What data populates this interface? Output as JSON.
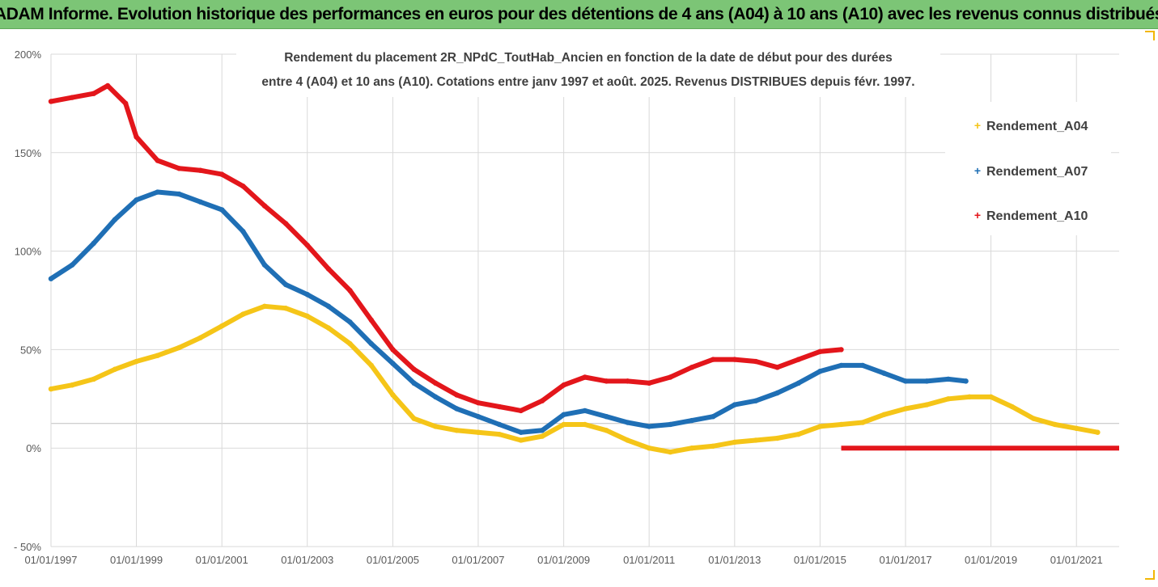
{
  "banner": {
    "title": "ADAM Informe. Evolution historique des performances en euros pour des détentions de 4 ans (A04) à 10 ans (A10) avec les revenus connus distribués"
  },
  "chart_data": {
    "type": "scatter",
    "title_line1": "Rendement du placement 2R_NPdC_ToutHab_Ancien en fonction de la date de début pour des durées",
    "title_line2": "entre 4 (A04) et 10 ans (A10). Cotations entre janv 1997 et août. 2025. Revenus DISTRIBUES depuis févr. 1997.",
    "xlabel": "",
    "ylabel": "",
    "x_ticks": [
      "01/01/1997",
      "01/01/1999",
      "01/01/2001",
      "01/01/2003",
      "01/01/2005",
      "01/01/2007",
      "01/01/2009",
      "01/01/2011",
      "01/01/2013",
      "01/01/2015",
      "01/01/2017",
      "01/01/2019",
      "01/01/2021"
    ],
    "xlim": [
      "1997-01-01",
      "2022-01-01"
    ],
    "y_ticks": [
      "200%",
      "150%",
      "100%",
      "50%",
      "0%",
      "- 50%"
    ],
    "ylim": [
      -50,
      200
    ],
    "grid": true,
    "legend_position": "right",
    "series": [
      {
        "name": "Rendement_A04",
        "color": "#f5c518",
        "points": [
          [
            "1997-01-01",
            30
          ],
          [
            "1997-07-01",
            32
          ],
          [
            "1998-01-01",
            35
          ],
          [
            "1998-07-01",
            40
          ],
          [
            "1999-01-01",
            44
          ],
          [
            "1999-07-01",
            47
          ],
          [
            "2000-01-01",
            51
          ],
          [
            "2000-07-01",
            56
          ],
          [
            "2001-01-01",
            62
          ],
          [
            "2001-07-01",
            68
          ],
          [
            "2002-01-01",
            72
          ],
          [
            "2002-07-01",
            71
          ],
          [
            "2003-01-01",
            67
          ],
          [
            "2003-07-01",
            61
          ],
          [
            "2004-01-01",
            53
          ],
          [
            "2004-07-01",
            42
          ],
          [
            "2005-01-01",
            27
          ],
          [
            "2005-07-01",
            15
          ],
          [
            "2006-01-01",
            11
          ],
          [
            "2006-07-01",
            9
          ],
          [
            "2007-01-01",
            8
          ],
          [
            "2007-07-01",
            7
          ],
          [
            "2008-01-01",
            4
          ],
          [
            "2008-07-01",
            6
          ],
          [
            "2009-01-01",
            12
          ],
          [
            "2009-07-01",
            12
          ],
          [
            "2010-01-01",
            9
          ],
          [
            "2010-07-01",
            4
          ],
          [
            "2011-01-01",
            0
          ],
          [
            "2011-07-01",
            -2
          ],
          [
            "2012-01-01",
            0
          ],
          [
            "2012-07-01",
            1
          ],
          [
            "2013-01-01",
            3
          ],
          [
            "2013-07-01",
            4
          ],
          [
            "2014-01-01",
            5
          ],
          [
            "2014-07-01",
            7
          ],
          [
            "2015-01-01",
            11
          ],
          [
            "2015-07-01",
            12
          ],
          [
            "2016-01-01",
            13
          ],
          [
            "2016-07-01",
            17
          ],
          [
            "2017-01-01",
            20
          ],
          [
            "2017-07-01",
            22
          ],
          [
            "2018-01-01",
            25
          ],
          [
            "2018-07-01",
            26
          ],
          [
            "2019-01-01",
            26
          ],
          [
            "2019-07-01",
            21
          ],
          [
            "2020-01-01",
            15
          ],
          [
            "2020-07-01",
            12
          ],
          [
            "2021-01-01",
            10
          ],
          [
            "2021-07-01",
            8
          ]
        ]
      },
      {
        "name": "Rendement_A07",
        "color": "#1f6fb5",
        "points": [
          [
            "1997-01-01",
            86
          ],
          [
            "1997-07-01",
            93
          ],
          [
            "1998-01-01",
            104
          ],
          [
            "1998-07-01",
            116
          ],
          [
            "1999-01-01",
            126
          ],
          [
            "1999-07-01",
            130
          ],
          [
            "2000-01-01",
            129
          ],
          [
            "2000-07-01",
            125
          ],
          [
            "2001-01-01",
            121
          ],
          [
            "2001-07-01",
            110
          ],
          [
            "2002-01-01",
            93
          ],
          [
            "2002-07-01",
            83
          ],
          [
            "2003-01-01",
            78
          ],
          [
            "2003-07-01",
            72
          ],
          [
            "2004-01-01",
            64
          ],
          [
            "2004-07-01",
            53
          ],
          [
            "2005-01-01",
            43
          ],
          [
            "2005-07-01",
            33
          ],
          [
            "2006-01-01",
            26
          ],
          [
            "2006-07-01",
            20
          ],
          [
            "2007-01-01",
            16
          ],
          [
            "2007-07-01",
            12
          ],
          [
            "2008-01-01",
            8
          ],
          [
            "2008-07-01",
            9
          ],
          [
            "2009-01-01",
            17
          ],
          [
            "2009-07-01",
            19
          ],
          [
            "2010-01-01",
            16
          ],
          [
            "2010-07-01",
            13
          ],
          [
            "2011-01-01",
            11
          ],
          [
            "2011-07-01",
            12
          ],
          [
            "2012-01-01",
            14
          ],
          [
            "2012-07-01",
            16
          ],
          [
            "2013-01-01",
            22
          ],
          [
            "2013-07-01",
            24
          ],
          [
            "2014-01-01",
            28
          ],
          [
            "2014-07-01",
            33
          ],
          [
            "2015-01-01",
            39
          ],
          [
            "2015-07-01",
            42
          ],
          [
            "2016-01-01",
            42
          ],
          [
            "2016-07-01",
            38
          ],
          [
            "2017-01-01",
            34
          ],
          [
            "2017-07-01",
            34
          ],
          [
            "2018-01-01",
            35
          ],
          [
            "2018-06-01",
            34
          ]
        ]
      },
      {
        "name": "Rendement_A10",
        "color": "#e3161b",
        "points": [
          [
            "1997-01-01",
            176
          ],
          [
            "1997-07-01",
            178
          ],
          [
            "1998-01-01",
            180
          ],
          [
            "1998-05-01",
            184
          ],
          [
            "1998-10-01",
            175
          ],
          [
            "1999-01-01",
            158
          ],
          [
            "1999-07-01",
            146
          ],
          [
            "2000-01-01",
            142
          ],
          [
            "2000-07-01",
            141
          ],
          [
            "2001-01-01",
            139
          ],
          [
            "2001-07-01",
            133
          ],
          [
            "2002-01-01",
            123
          ],
          [
            "2002-07-01",
            114
          ],
          [
            "2003-01-01",
            103
          ],
          [
            "2003-07-01",
            91
          ],
          [
            "2004-01-01",
            80
          ],
          [
            "2004-07-01",
            65
          ],
          [
            "2005-01-01",
            50
          ],
          [
            "2005-07-01",
            40
          ],
          [
            "2006-01-01",
            33
          ],
          [
            "2006-07-01",
            27
          ],
          [
            "2007-01-01",
            23
          ],
          [
            "2007-07-01",
            21
          ],
          [
            "2008-01-01",
            19
          ],
          [
            "2008-07-01",
            24
          ],
          [
            "2009-01-01",
            32
          ],
          [
            "2009-07-01",
            36
          ],
          [
            "2010-01-01",
            34
          ],
          [
            "2010-07-01",
            34
          ],
          [
            "2011-01-01",
            33
          ],
          [
            "2011-07-01",
            36
          ],
          [
            "2012-01-01",
            41
          ],
          [
            "2012-07-01",
            45
          ],
          [
            "2013-01-01",
            45
          ],
          [
            "2013-07-01",
            44
          ],
          [
            "2014-01-01",
            41
          ],
          [
            "2014-07-01",
            45
          ],
          [
            "2015-01-01",
            49
          ],
          [
            "2015-07-01",
            50
          ]
        ],
        "flat_segment": {
          "from": "2015-07-01",
          "to": "2022-01-01",
          "value": 0
        }
      }
    ]
  }
}
